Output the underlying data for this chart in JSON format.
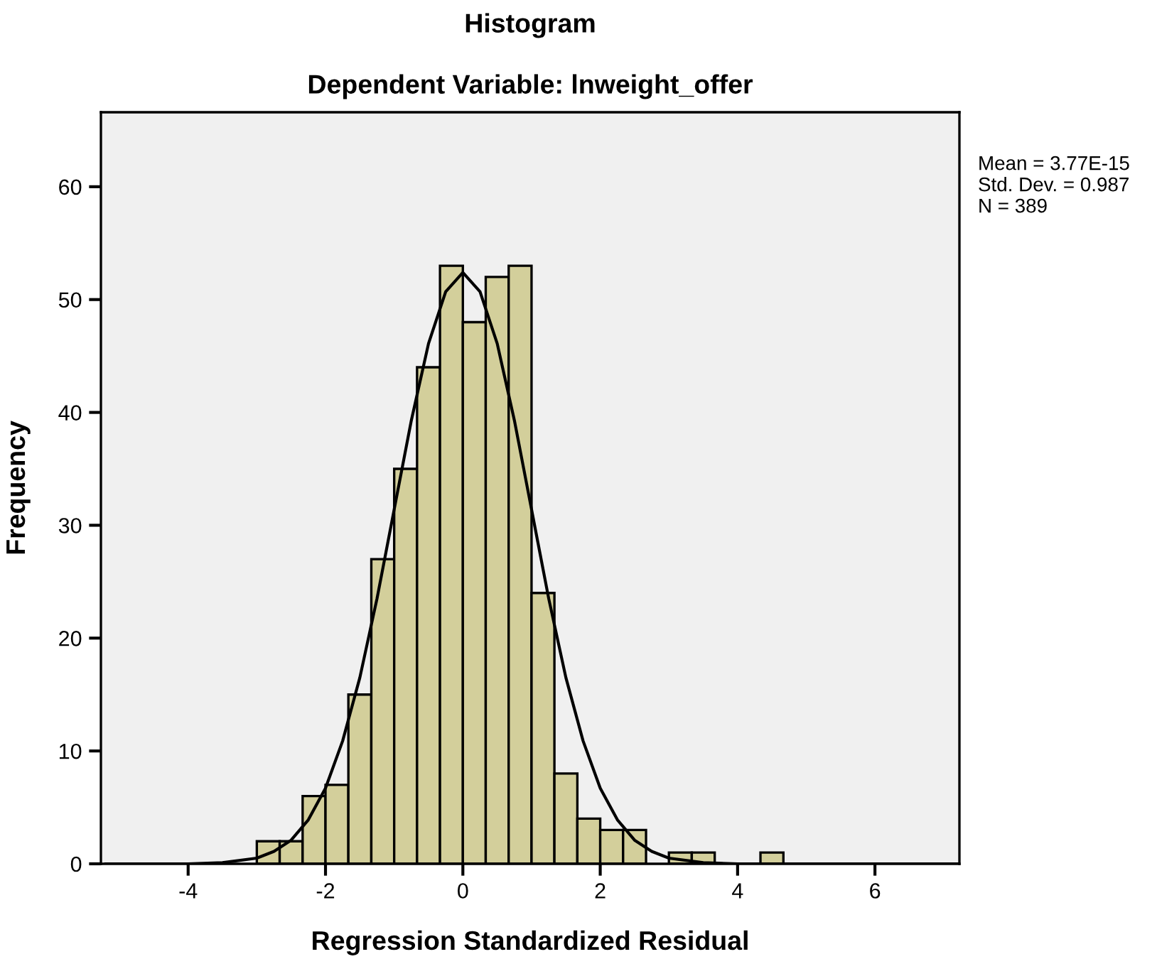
{
  "chart_data": {
    "type": "histogram",
    "title": "Histogram",
    "subtitle": "Dependent Variable: lnweight_offer",
    "xlabel": "Regression Standardized Residual",
    "ylabel": "Frequency",
    "series": [
      {
        "color": "#d3cf9b",
        "bins": [
          -3.0,
          -2.667,
          -2.333,
          -2.0,
          -1.667,
          -1.333,
          -1.0,
          -0.667,
          -0.333,
          0.0,
          0.333,
          0.667,
          1.0,
          1.333,
          1.667,
          2.0,
          2.333,
          2.667,
          3.0,
          3.333,
          3.667,
          4.0,
          4.333,
          4.667
        ],
        "values": [
          2,
          2,
          6,
          7,
          15,
          27,
          35,
          44,
          53,
          48,
          52,
          53,
          24,
          8,
          4,
          3,
          3,
          0,
          1,
          1,
          0,
          0,
          1
        ]
      },
      {
        "type": "line",
        "color": "#000000",
        "x": [
          -5.2,
          -4.5,
          -4.0,
          -3.5,
          -3.0,
          -2.75,
          -2.5,
          -2.25,
          -2.0,
          -1.75,
          -1.5,
          -1.25,
          -1.0,
          -0.75,
          -0.5,
          -0.25,
          0.0,
          0.25,
          0.5,
          0.75,
          1.0,
          1.25,
          1.5,
          1.75,
          2.0,
          2.25,
          2.5,
          2.75,
          3.0,
          3.5,
          4.0,
          4.5,
          5.0,
          6.0,
          7.2
        ],
        "values": [
          0,
          0,
          0,
          0.1,
          0.5,
          1.1,
          2.1,
          3.9,
          6.7,
          10.9,
          16.5,
          23.5,
          31.4,
          39.3,
          46.1,
          50.7,
          52.4,
          50.7,
          46.1,
          39.3,
          31.4,
          23.5,
          16.5,
          10.9,
          6.7,
          3.9,
          2.1,
          1.1,
          0.5,
          0.1,
          0,
          0,
          0,
          0,
          0
        ]
      }
    ],
    "xlim": [
      -5.27,
      7.23
    ],
    "ylim": [
      0,
      66.6
    ],
    "xticks": [
      -4,
      -2,
      0,
      2,
      4,
      6
    ],
    "yticks": [
      0,
      10,
      20,
      30,
      40,
      50,
      60
    ],
    "grid": false,
    "legend": false,
    "annotations": [
      "Mean = 3.77E-15",
      "Std. Dev. = 0.987",
      "N = 389"
    ]
  }
}
